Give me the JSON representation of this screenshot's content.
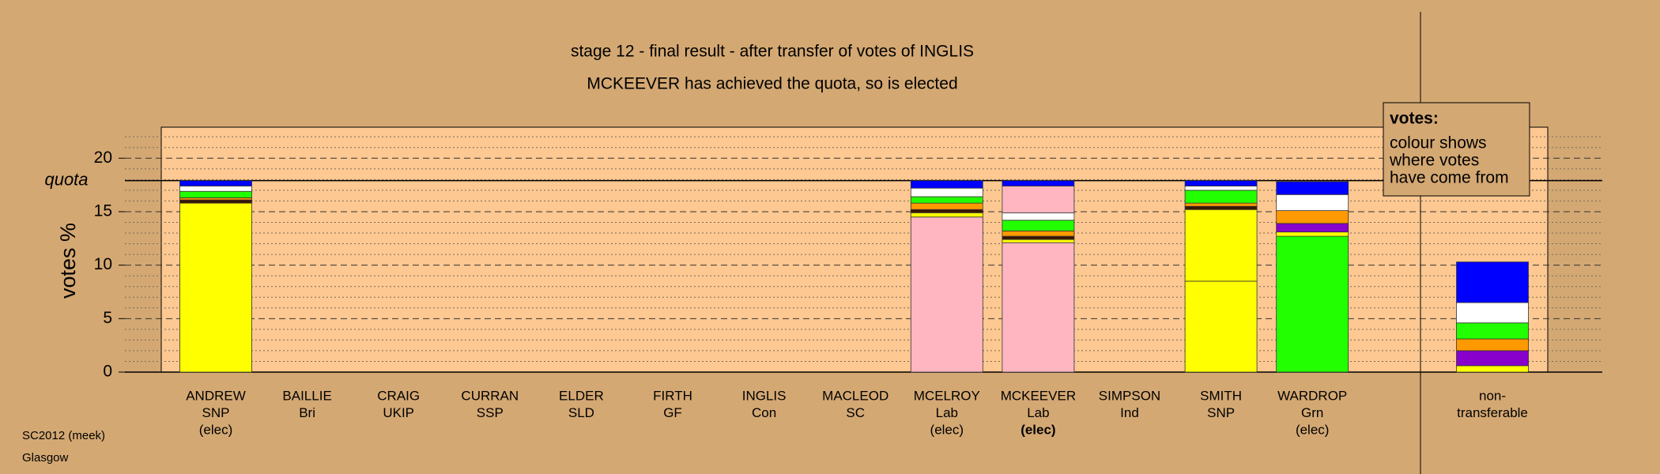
{
  "chart_data": {
    "type": "stacked_bar",
    "title": "stage 12 - final result - after transfer of votes of INGLIS",
    "subtitle": "MCKEEVER has achieved the quota, so is elected",
    "y_label": "votes %",
    "quota_label": "quota",
    "quota": 17.9,
    "ylim": [
      0,
      22.9
    ],
    "yticks": [
      0,
      5,
      10,
      15,
      20
    ],
    "minor_yticks": [
      1,
      2,
      3,
      4,
      6,
      7,
      8,
      9,
      11,
      12,
      13,
      14,
      16,
      17,
      18,
      19,
      21,
      22
    ],
    "categories": [
      [
        "ANDREW",
        "SNP",
        "(elec)"
      ],
      [
        "BAILLIE",
        "Bri"
      ],
      [
        "CRAIG",
        "UKIP"
      ],
      [
        "CURRAN",
        "SSP"
      ],
      [
        "ELDER",
        "SLD"
      ],
      [
        "FIRTH",
        "GF"
      ],
      [
        "INGLIS",
        "Con"
      ],
      [
        "MACLEOD",
        "SC"
      ],
      [
        "MCELROY",
        "Lab",
        "(elec)"
      ],
      [
        "MCKEEVER",
        "Lab",
        "(elec)"
      ],
      [
        "SIMPSON",
        "Ind"
      ],
      [
        "SMITH",
        "SNP"
      ],
      [
        "WARDROP",
        "Grn",
        "(elec)"
      ],
      [
        "non-",
        "transferable"
      ]
    ],
    "highlight_index": 9,
    "stacks": [
      [
        {
          "color": "#ffff00",
          "value": 15.8
        },
        {
          "color": "#3a1500",
          "value": 0.3
        },
        {
          "color": "#ff9900",
          "value": 0.2
        },
        {
          "color": "#22ff00",
          "value": 0.6
        },
        {
          "color": "#ffffff",
          "value": 0.5
        },
        {
          "color": "#0000ff",
          "value": 0.5
        }
      ],
      [],
      [],
      [],
      [],
      [],
      [],
      [],
      [
        {
          "color": "#ffb6c1",
          "value": 14.5
        },
        {
          "color": "#ffff00",
          "value": 0.4
        },
        {
          "color": "#3a1500",
          "value": 0.3
        },
        {
          "color": "#ff9900",
          "value": 0.6
        },
        {
          "color": "#22ff00",
          "value": 0.6
        },
        {
          "color": "#ffffff",
          "value": 0.8
        },
        {
          "color": "#0000ff",
          "value": 0.7
        }
      ],
      [
        {
          "color": "#ffb6c1",
          "value": 12.1
        },
        {
          "color": "#ffff00",
          "value": 0.3
        },
        {
          "color": "#3a1500",
          "value": 0.3
        },
        {
          "color": "#ff9900",
          "value": 0.5
        },
        {
          "color": "#22ff00",
          "value": 1.0
        },
        {
          "color": "#ffffff",
          "value": 0.7
        },
        {
          "color": "#ffb6c1",
          "value": 2.5
        },
        {
          "color": "#0000ff",
          "value": 0.5
        }
      ],
      [],
      [
        {
          "color": "#ffff00",
          "value": 8.5
        },
        {
          "color": "#ffff00",
          "value": 6.7
        },
        {
          "color": "#3a1500",
          "value": 0.3
        },
        {
          "color": "#ff9900",
          "value": 0.3
        },
        {
          "color": "#22ff00",
          "value": 1.2
        },
        {
          "color": "#ffffff",
          "value": 0.4
        },
        {
          "color": "#0000ff",
          "value": 0.5
        }
      ],
      [
        {
          "color": "#22ff00",
          "value": 12.7
        },
        {
          "color": "#ffff00",
          "value": 0.4
        },
        {
          "color": "#8800cc",
          "value": 0.8
        },
        {
          "color": "#ff9900",
          "value": 1.2
        },
        {
          "color": "#ffffff",
          "value": 1.5
        },
        {
          "color": "#0000ff",
          "value": 1.2
        }
      ],
      [
        {
          "color": "#ffff00",
          "value": 0.6
        },
        {
          "color": "#8800cc",
          "value": 1.4
        },
        {
          "color": "#ff9900",
          "value": 1.1
        },
        {
          "color": "#22ff00",
          "value": 1.5
        },
        {
          "color": "#ffffff",
          "value": 1.9
        },
        {
          "color": "#0000ff",
          "value": 3.8
        }
      ]
    ],
    "legend": {
      "title": "votes:",
      "lines": [
        "colour shows",
        "where votes",
        "have come from"
      ]
    },
    "footer": [
      "SC2012 (meek)",
      "Glasgow"
    ],
    "panel_color": "#fdc891",
    "background": "#d4a873"
  }
}
